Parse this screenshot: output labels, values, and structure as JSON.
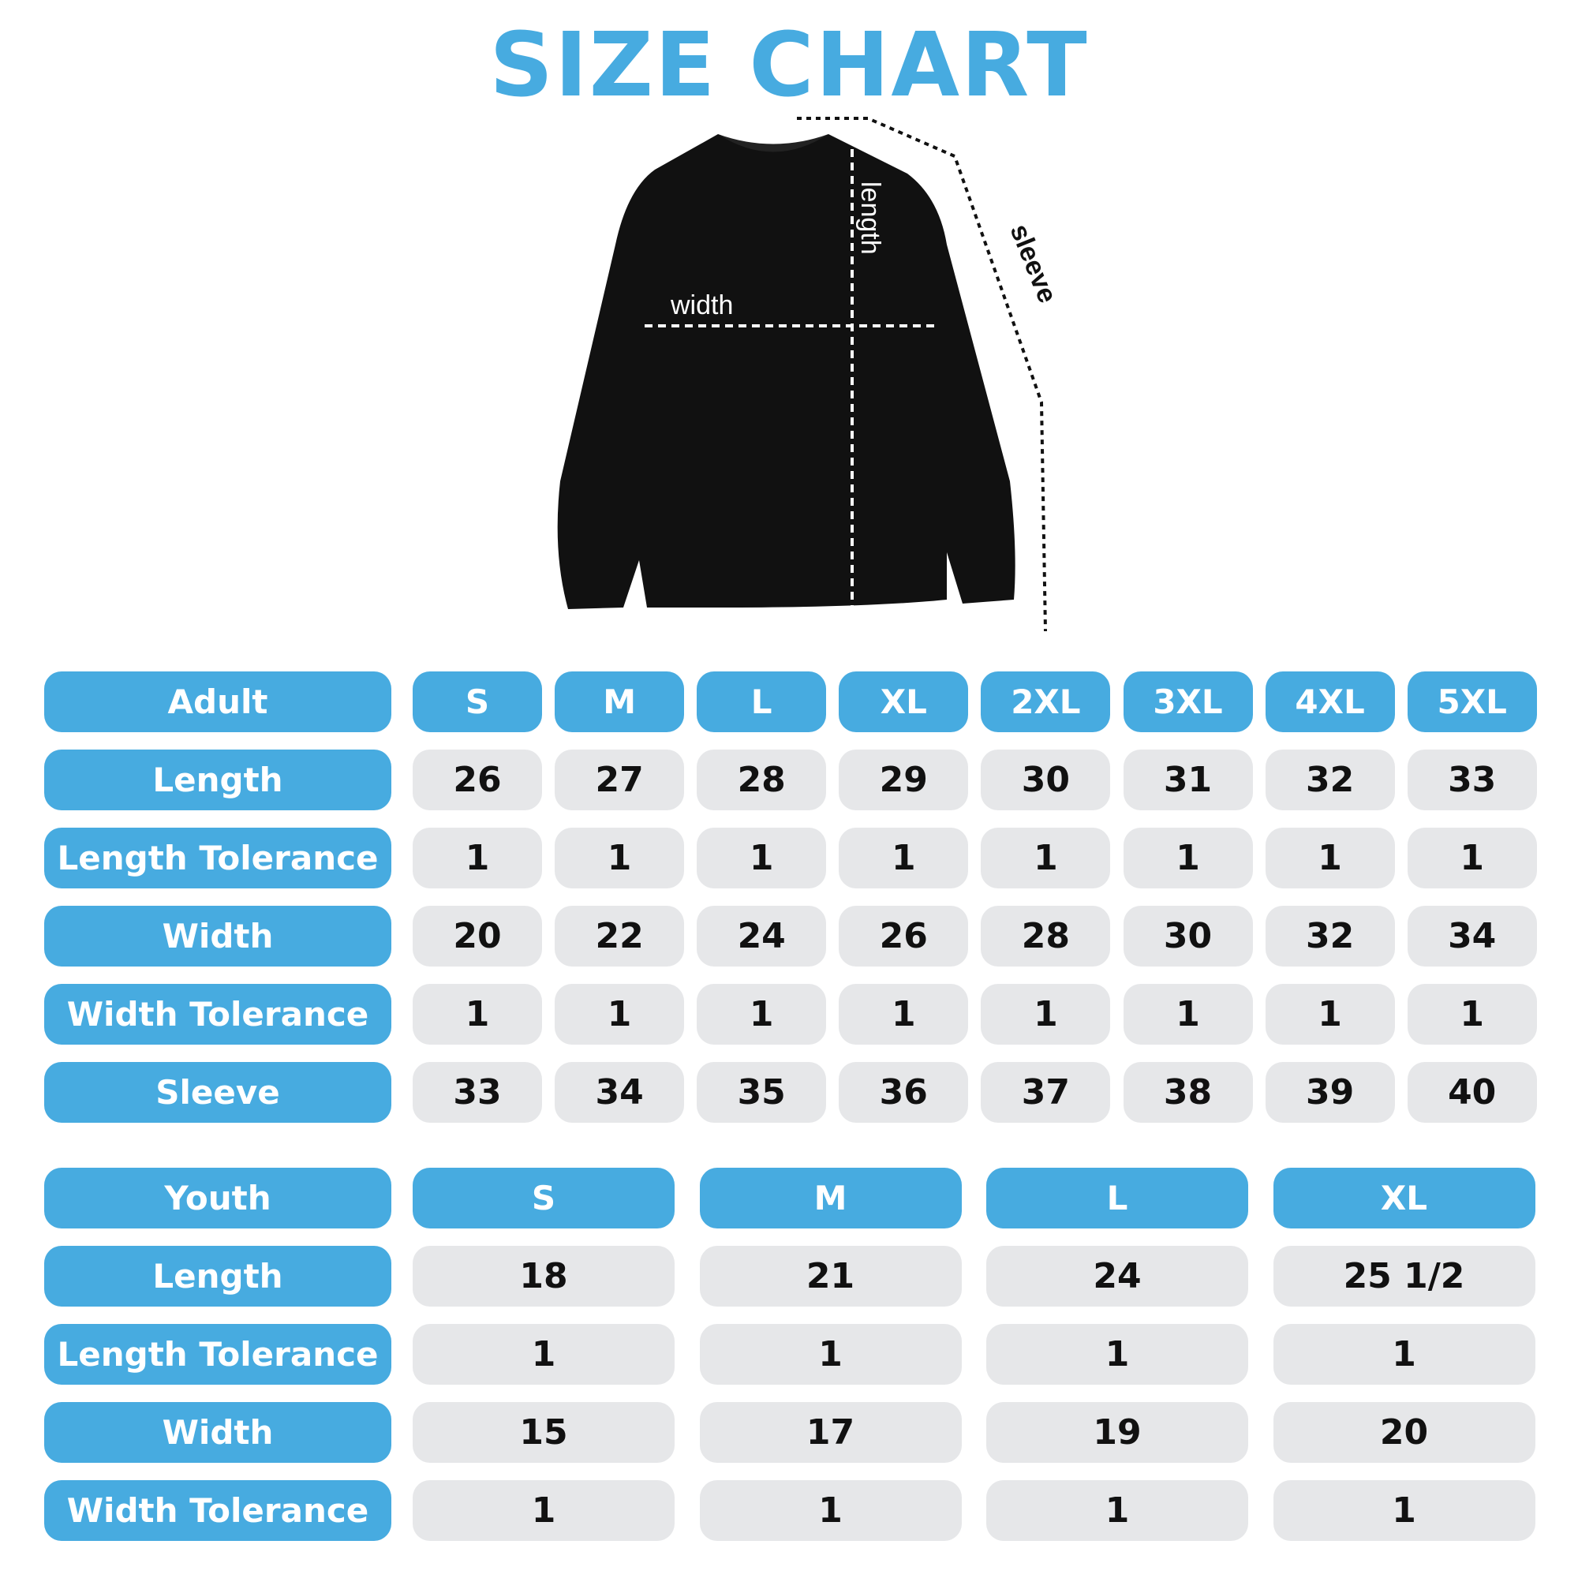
{
  "title": "SIZE CHART",
  "diagram": {
    "width_label": "width",
    "length_label": "length",
    "sleeve_label": "sleeve"
  },
  "colors": {
    "accent": "#47ABE0",
    "cell": "#E6E7E9"
  },
  "adult": {
    "header": "Adult",
    "sizes": [
      "S",
      "M",
      "L",
      "XL",
      "2XL",
      "3XL",
      "4XL",
      "5XL"
    ],
    "rows": [
      {
        "label": "Length",
        "values": [
          "26",
          "27",
          "28",
          "29",
          "30",
          "31",
          "32",
          "33"
        ]
      },
      {
        "label": "Length Tolerance",
        "values": [
          "1",
          "1",
          "1",
          "1",
          "1",
          "1",
          "1",
          "1"
        ]
      },
      {
        "label": "Width",
        "values": [
          "20",
          "22",
          "24",
          "26",
          "28",
          "30",
          "32",
          "34"
        ]
      },
      {
        "label": "Width Tolerance",
        "values": [
          "1",
          "1",
          "1",
          "1",
          "1",
          "1",
          "1",
          "1"
        ]
      },
      {
        "label": "Sleeve",
        "values": [
          "33",
          "34",
          "35",
          "36",
          "37",
          "38",
          "39",
          "40"
        ]
      }
    ]
  },
  "youth": {
    "header": "Youth",
    "sizes": [
      "S",
      "M",
      "L",
      "XL"
    ],
    "rows": [
      {
        "label": "Length",
        "values": [
          "18",
          "21",
          "24",
          "25 1/2"
        ]
      },
      {
        "label": "Length Tolerance",
        "values": [
          "1",
          "1",
          "1",
          "1"
        ]
      },
      {
        "label": "Width",
        "values": [
          "15",
          "17",
          "19",
          "20"
        ]
      },
      {
        "label": "Width Tolerance",
        "values": [
          "1",
          "1",
          "1",
          "1"
        ]
      }
    ]
  }
}
